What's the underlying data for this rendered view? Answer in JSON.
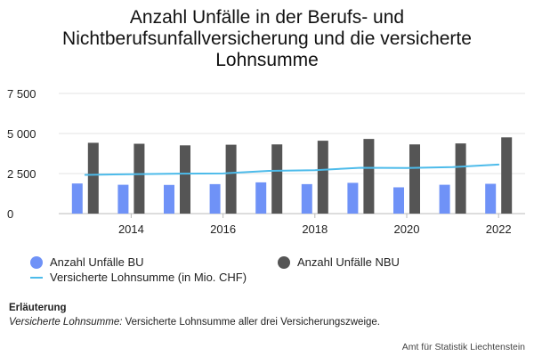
{
  "chart_data": {
    "type": "bar",
    "title": "Anzahl Unfälle in der Berufs- und Nichtberufsunfallversicherung und die versicherte Lohnsumme",
    "x": [
      2013,
      2014,
      2015,
      2016,
      2017,
      2018,
      2019,
      2020,
      2021,
      2022
    ],
    "x_ticks": [
      "2014",
      "2016",
      "2018",
      "2020",
      "2022"
    ],
    "y_ticks": [
      "0",
      "2 500",
      "5 000",
      "7 500"
    ],
    "ylim": [
      0,
      8000
    ],
    "grid": true,
    "legend_position": "bottom",
    "series": [
      {
        "name": "Anzahl Unfälle BU",
        "kind": "bar",
        "color": "#6f92f7",
        "values": [
          1880,
          1800,
          1790,
          1840,
          1950,
          1840,
          1920,
          1640,
          1800,
          1860
        ]
      },
      {
        "name": "Anzahl Unfälle NBU",
        "kind": "bar",
        "color": "#555555",
        "values": [
          4420,
          4360,
          4260,
          4300,
          4320,
          4550,
          4660,
          4320,
          4380,
          4760
        ]
      },
      {
        "name": "Versicherte Lohnsumme (in Mio. CHF)",
        "kind": "line",
        "color": "#4dbbea",
        "values": [
          2420,
          2460,
          2490,
          2510,
          2670,
          2710,
          2860,
          2850,
          2900,
          3060
        ]
      }
    ]
  },
  "note": {
    "heading": "Erläuterung",
    "term": "Versicherte Lohnsumme:",
    "text": " Versicherte Lohnsumme aller drei Versicherungszweige."
  },
  "source": "Amt für Statistik Liechtenstein"
}
